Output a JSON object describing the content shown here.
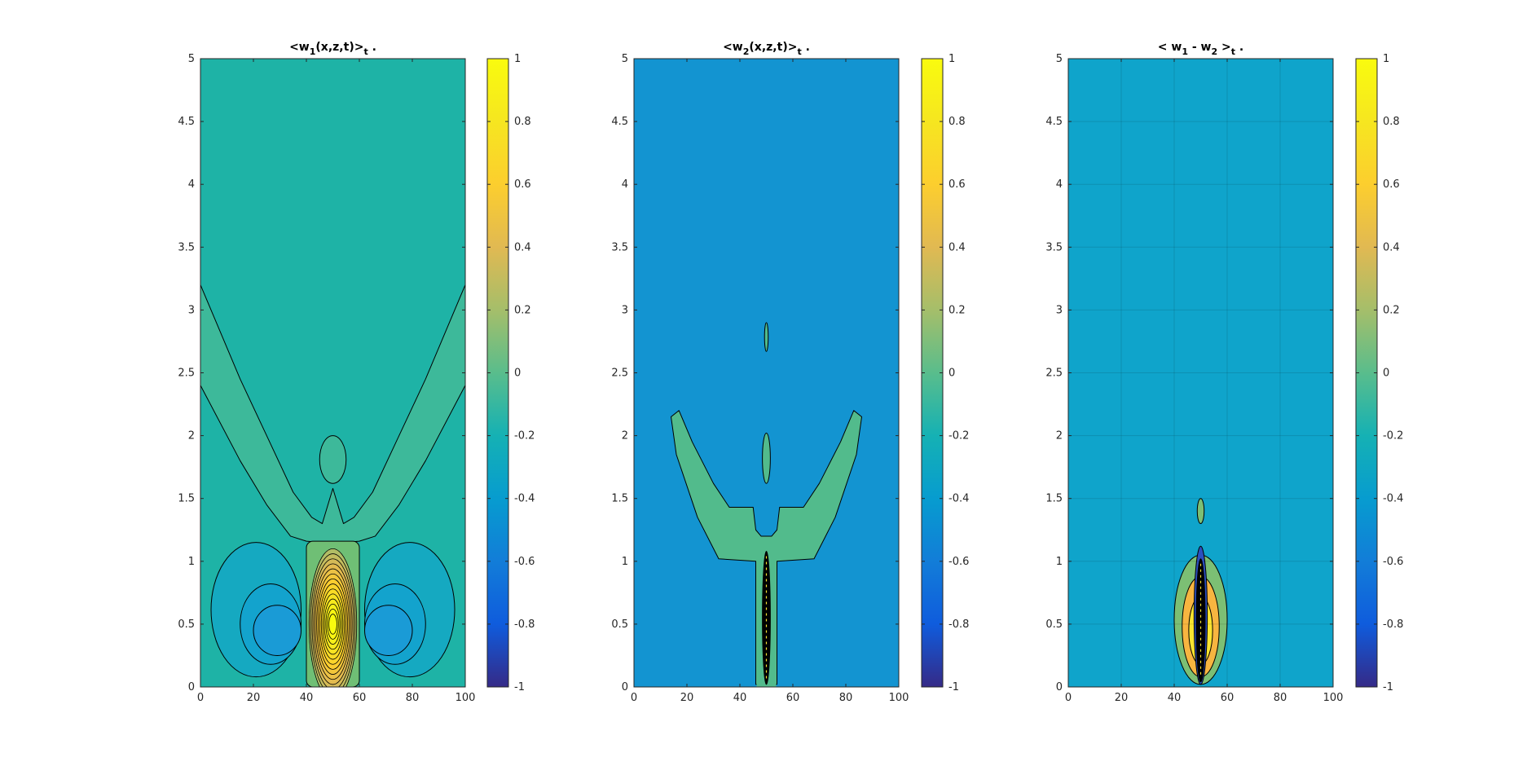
{
  "chart_data": [
    {
      "type": "heatmap",
      "title": "<w1(x,z,t)>t .",
      "title_parts": {
        "open": "<w",
        "sub1": "1",
        "mid": "(x,z,t)>",
        "sub2": "t",
        "tail": " ."
      },
      "xlim": [
        0,
        100
      ],
      "ylim": [
        0,
        5
      ],
      "xticks": [
        "0",
        "20",
        "40",
        "60",
        "80",
        "100"
      ],
      "yticks": [
        "0",
        "0.5",
        "1",
        "1.5",
        "2",
        "2.5",
        "3",
        "3.5",
        "4",
        "4.5",
        "5"
      ],
      "grid": false,
      "background": "#1eb3a6",
      "colorbar": {
        "range": [
          -1,
          1
        ],
        "ticks": [
          "-1",
          "-0.8",
          "-0.6",
          "-0.4",
          "-0.2",
          "0",
          "0.2",
          "0.4",
          "0.6",
          "0.8",
          "1"
        ]
      },
      "regions": [
        {
          "level": 0.1,
          "fill": "#3db99a",
          "shape": "v-band",
          "x": [
            0,
            100
          ],
          "z_center": 1.2,
          "z_edge": 2.8
        },
        {
          "level": 0.1,
          "fill": "#3db99a",
          "shape": "ellipse",
          "x": [
            45,
            55
          ],
          "z": [
            1.62,
            2.0
          ]
        },
        {
          "level": -0.1,
          "fill": "#15a9c1",
          "shape": "ellipse",
          "x": [
            4,
            38
          ],
          "z": [
            0.08,
            1.15
          ]
        },
        {
          "level": -0.1,
          "fill": "#15a9c1",
          "shape": "ellipse",
          "x": [
            62,
            96
          ],
          "z": [
            0.08,
            1.15
          ]
        },
        {
          "level": -0.2,
          "fill": "#13a3cd",
          "shape": "ellipse",
          "x": [
            15,
            38
          ],
          "z": [
            0.18,
            0.82
          ]
        },
        {
          "level": -0.2,
          "fill": "#13a3cd",
          "shape": "ellipse",
          "x": [
            62,
            85
          ],
          "z": [
            0.18,
            0.82
          ]
        },
        {
          "level": -0.25,
          "fill": "#1a9bd6",
          "shape": "ellipse",
          "x": [
            20,
            38
          ],
          "z": [
            0.25,
            0.65
          ]
        },
        {
          "level": -0.25,
          "fill": "#1a9bd6",
          "shape": "ellipse",
          "x": [
            62,
            80
          ],
          "z": [
            0.25,
            0.65
          ]
        },
        {
          "level": 0.2,
          "fill": "#6fbf75",
          "shape": "rect",
          "x": [
            40,
            60
          ],
          "z": [
            0,
            1.16
          ]
        },
        {
          "level": 1.0,
          "fill": "#f9e430",
          "shape": "nested-ellipses",
          "x_center": 50,
          "z_center": 0.5,
          "x_half": [
            9,
            1.5
          ],
          "z_half": [
            0.6,
            0.08
          ],
          "count": 14
        }
      ]
    },
    {
      "type": "heatmap",
      "title": "<w2(x,z,t)>t .",
      "title_parts": {
        "open": "<w",
        "sub1": "2",
        "mid": "(x,z,t)>",
        "sub2": "t",
        "tail": " ."
      },
      "xlim": [
        0,
        100
      ],
      "ylim": [
        0,
        5
      ],
      "xticks": [
        "0",
        "20",
        "40",
        "60",
        "80",
        "100"
      ],
      "yticks": [
        "0",
        "0.5",
        "1",
        "1.5",
        "2",
        "2.5",
        "3",
        "3.5",
        "4",
        "4.5",
        "5"
      ],
      "grid": false,
      "background": "#1394d1",
      "colorbar": {
        "range": [
          -1,
          1
        ],
        "ticks": [
          "-1",
          "-0.8",
          "-0.6",
          "-0.4",
          "-0.2",
          "0",
          "0.2",
          "0.4",
          "0.6",
          "0.8",
          "1"
        ]
      },
      "regions": [
        {
          "level": 0.1,
          "fill": "#52bb8c",
          "shape": "trident",
          "x": [
            14,
            86
          ],
          "z": [
            1.0,
            2.2
          ]
        },
        {
          "level": 0.1,
          "fill": "#52bb8c",
          "shape": "stem",
          "x": [
            46,
            54
          ],
          "z": [
            0,
            1.0
          ]
        },
        {
          "level": 0.1,
          "fill": "#52bb8c",
          "shape": "ellipse",
          "x": [
            48.5,
            51.5
          ],
          "z": [
            1.62,
            2.02
          ]
        },
        {
          "level": 0.1,
          "fill": "#52bb8c",
          "shape": "ellipse",
          "x": [
            49.3,
            50.7
          ],
          "z": [
            2.67,
            2.9
          ]
        },
        {
          "level": 1.0,
          "fill": "#000000",
          "shape": "dense-lines",
          "x": [
            48.5,
            51.5
          ],
          "z": [
            0.02,
            1.08
          ]
        }
      ]
    },
    {
      "type": "heatmap",
      "title": "< w1 - w2 >t .",
      "title_parts": {
        "open": "< w",
        "sub1": "1",
        "mid": " - w",
        "sub2": "2",
        "mid2": " >",
        "sub3": "t",
        "tail": " ."
      },
      "xlim": [
        0,
        100
      ],
      "ylim": [
        0,
        5
      ],
      "xticks": [
        "0",
        "20",
        "40",
        "60",
        "80",
        "100"
      ],
      "yticks": [
        "0",
        "0.5",
        "1",
        "1.5",
        "2",
        "2.5",
        "3",
        "3.5",
        "4",
        "4.5",
        "5"
      ],
      "grid": true,
      "background": "#0fa4cb",
      "colorbar": {
        "range": [
          -1,
          1
        ],
        "ticks": [
          "-1",
          "-0.8",
          "-0.6",
          "-0.4",
          "-0.2",
          "0",
          "0.2",
          "0.4",
          "0.6",
          "0.8",
          "1"
        ]
      },
      "regions": [
        {
          "level": 0.2,
          "fill": "#7cbf74",
          "shape": "ellipse",
          "x": [
            40,
            60
          ],
          "z": [
            0.02,
            1.05
          ]
        },
        {
          "level": 0.6,
          "fill": "#f7b540",
          "shape": "ellipse",
          "x": [
            43,
            57
          ],
          "z": [
            0.08,
            0.88
          ]
        },
        {
          "level": 0.9,
          "fill": "#f9e430",
          "shape": "ellipse",
          "x": [
            45.5,
            54.5
          ],
          "z": [
            0.18,
            0.72
          ]
        },
        {
          "level": 0.1,
          "fill": "#7cbf74",
          "shape": "ellipse",
          "x": [
            48.7,
            51.3
          ],
          "z": [
            1.3,
            1.5
          ]
        },
        {
          "level": -0.6,
          "fill": "#2c4fbf",
          "shape": "ellipse",
          "x": [
            47.5,
            52.5
          ],
          "z": [
            0.02,
            1.12
          ]
        },
        {
          "level": -1.0,
          "fill": "#000000",
          "shape": "dense-lines",
          "x": [
            48.3,
            51.7
          ],
          "z": [
            0.04,
            1.02
          ]
        }
      ]
    }
  ]
}
